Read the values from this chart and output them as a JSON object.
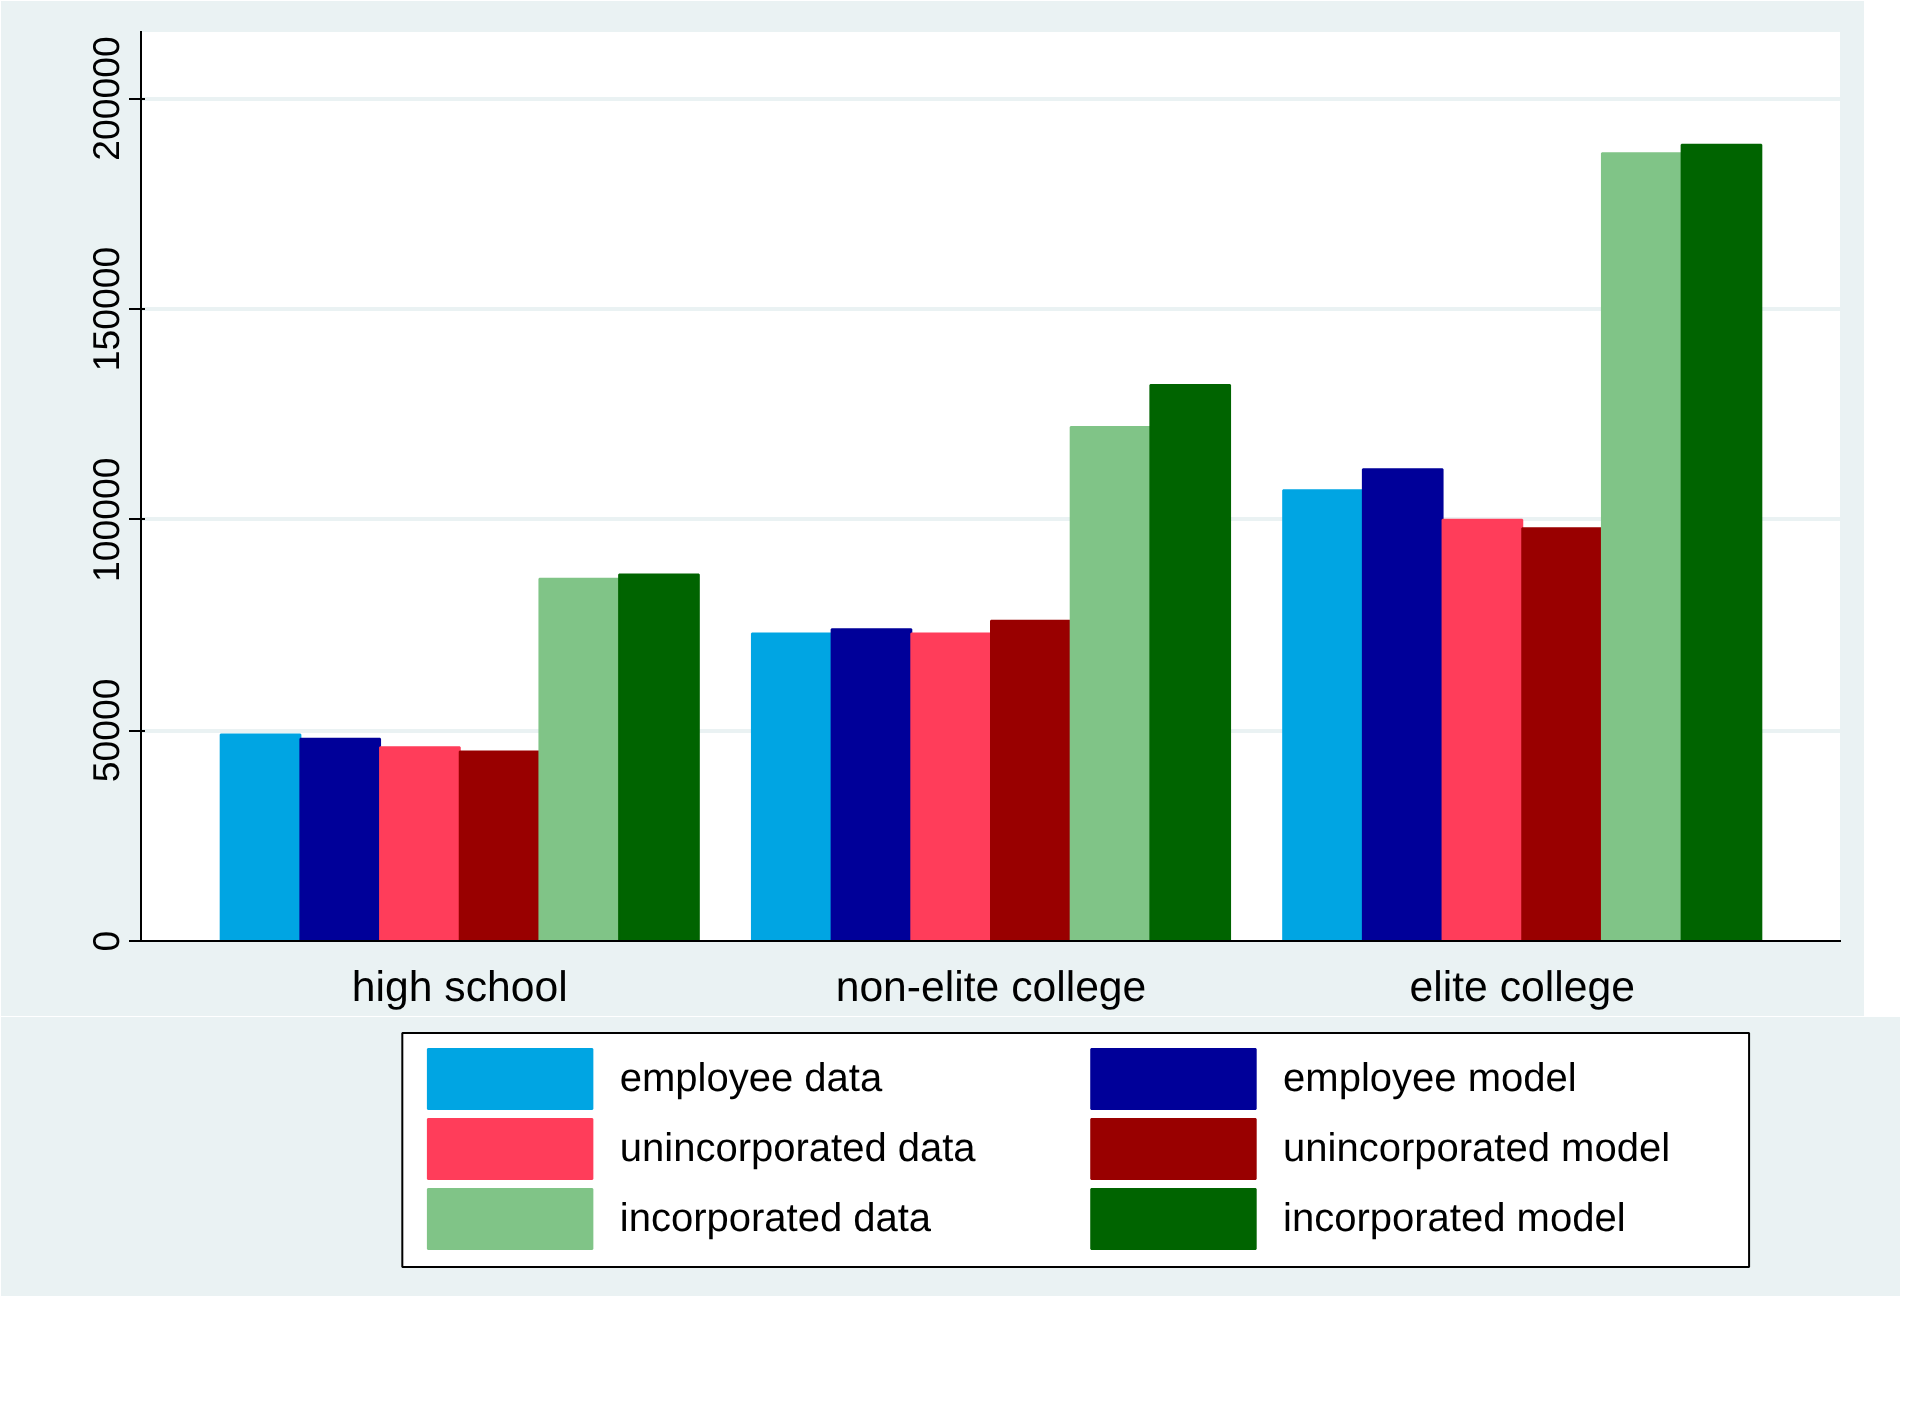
{
  "chart_data": {
    "type": "bar",
    "categories": [
      "high school",
      "non-elite college",
      "elite college"
    ],
    "series": [
      {
        "name": "employee data",
        "color": "#00a5e3",
        "values": [
          49000,
          73000,
          107000
        ]
      },
      {
        "name": "employee model",
        "color": "#000099",
        "values": [
          48000,
          74000,
          112000
        ]
      },
      {
        "name": "unincorporated data",
        "color": "#ff3d5a",
        "values": [
          46000,
          73000,
          100000
        ]
      },
      {
        "name": "unincorporated model",
        "color": "#990000",
        "values": [
          45000,
          76000,
          98000
        ]
      },
      {
        "name": "incorporated data",
        "color": "#80c487",
        "values": [
          86000,
          122000,
          187000
        ]
      },
      {
        "name": "incorporated model",
        "color": "#006400",
        "values": [
          87000,
          132000,
          189000
        ]
      }
    ],
    "ylim": [
      0,
      216000
    ],
    "yticks": [
      0,
      50000,
      100000,
      150000,
      200000
    ],
    "grid": "y",
    "legend": "bottom"
  }
}
